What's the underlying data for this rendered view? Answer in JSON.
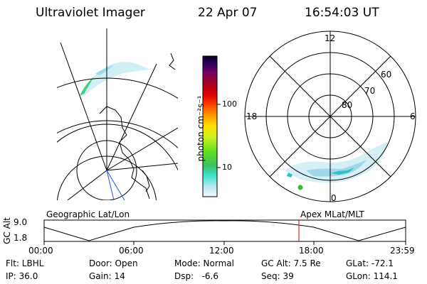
{
  "header": {
    "instrument": "Ultraviolet Imager",
    "date": "22 Apr 07",
    "time": "16:54:03 UT"
  },
  "colorbar": {
    "label": "photon cm⁻²s⁻¹",
    "ticks": [
      "100",
      "10"
    ],
    "scale": "log"
  },
  "polar_plot": {
    "mlt_labels": [
      "12",
      "18",
      "6",
      "0"
    ],
    "lat_labels": [
      "60",
      "70",
      "80"
    ]
  },
  "timeline": {
    "ylabel": "GC Alt",
    "ymax": "9.0",
    "ymin": "1.8",
    "left_title": "Geographic Lat/Lon",
    "right_title": "Apex MLat/MLT",
    "xticks": [
      "00:00",
      "06:00",
      "12:00",
      "18:00",
      "23:59"
    ],
    "marker_time": "16:54",
    "marker_color": "#e00000"
  },
  "info": {
    "flt": "Flt: LBHL",
    "door": "Door: Open",
    "mode": "Mode: Normal",
    "gcalt": "GC Alt: 7.5 Re",
    "glat": "GLat: -72.1",
    "ip": "IP: 36.0",
    "gain": "Gain: 14",
    "dsp": "Dsp:   -6.6",
    "seq": "Seq: 39",
    "glon": "GLon: 114.1"
  }
}
